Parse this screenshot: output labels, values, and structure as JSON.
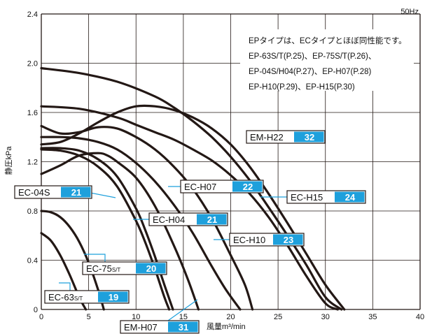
{
  "chart_data": {
    "type": "line",
    "frequency_label": "50Hz",
    "xlabel": "風量m³/min",
    "ylabel": "静圧kPa",
    "xlim": [
      0,
      40
    ],
    "ylim": [
      0,
      2.4
    ],
    "x_ticks": [
      "0",
      "5",
      "10",
      "15",
      "20",
      "25",
      "30",
      "35",
      "40"
    ],
    "y_ticks": [
      "0",
      "0.4",
      "0.8",
      "1.2",
      "1.6",
      "2.0",
      "2.4"
    ],
    "grid": true,
    "colors": {
      "curve": "#231815",
      "grid": "#231815",
      "label_box": "#1ea0dc",
      "leader": "#1ea0dc"
    },
    "note": {
      "lines": [
        "EPタイプは、ECタイプとほぼ同性能です。",
        "EP-63S/T(P.25)、EP-75S/T(P.26)、",
        "EP-04S/H04(P.27)、EP-H07(P.28)",
        "EP-H10(P.29)、EP-H15(P.30)"
      ]
    },
    "series": [
      {
        "name": "EC-63S/T",
        "base": "EC-63",
        "sub": "S/T",
        "page": "19",
        "x": [
          0,
          1,
          2,
          3,
          4,
          4.7
        ],
        "y": [
          0.62,
          0.56,
          0.44,
          0.28,
          0.1,
          0
        ]
      },
      {
        "name": "EC-75S/T",
        "base": "EC-75",
        "sub": "S/T",
        "page": "20",
        "x": [
          0,
          1,
          2,
          3,
          4,
          5,
          6,
          6.6
        ],
        "y": [
          0.8,
          0.79,
          0.75,
          0.67,
          0.55,
          0.38,
          0.16,
          0
        ]
      },
      {
        "name": "EC-04S",
        "page": "21",
        "x": [
          0,
          2,
          4,
          6,
          8,
          10,
          11,
          12,
          13,
          13.5
        ],
        "y": [
          1.3,
          1.29,
          1.25,
          1.16,
          1.0,
          0.72,
          0.54,
          0.33,
          0.1,
          0
        ]
      },
      {
        "name": "EC-H04",
        "page": "21",
        "x": [
          0,
          2,
          4,
          6,
          8,
          10,
          11,
          12,
          13,
          13.9
        ],
        "y": [
          1.31,
          1.31,
          1.29,
          1.22,
          1.08,
          0.82,
          0.64,
          0.43,
          0.2,
          0
        ]
      },
      {
        "name": "EM-H07",
        "page": "31",
        "x": [
          0,
          2,
          4,
          6,
          7,
          8,
          10,
          12,
          14,
          15.5,
          16.6
        ],
        "y": [
          1.1,
          1.17,
          1.25,
          1.27,
          1.25,
          1.2,
          1.07,
          0.84,
          0.52,
          0.24,
          0
        ]
      },
      {
        "name": "EC-H07",
        "page": "22",
        "x": [
          0,
          2,
          4,
          6,
          8,
          10,
          12,
          14,
          16,
          18,
          19.5,
          21
        ],
        "y": [
          1.4,
          1.4,
          1.39,
          1.36,
          1.3,
          1.19,
          1.04,
          0.85,
          0.62,
          0.35,
          0.16,
          0
        ]
      },
      {
        "name": "EC-H10",
        "page": "23",
        "x": [
          0,
          2,
          4,
          6,
          8,
          10,
          12,
          14,
          16,
          18,
          20,
          21.5,
          22.3
        ],
        "y": [
          1.49,
          1.43,
          1.44,
          1.48,
          1.47,
          1.4,
          1.3,
          1.16,
          0.98,
          0.74,
          0.44,
          0.2,
          0
        ]
      },
      {
        "name": "EC-H15",
        "page": "24",
        "x": [
          0,
          4,
          8,
          10,
          12,
          14,
          16,
          18,
          20,
          22,
          24,
          26,
          28,
          30,
          31.3
        ],
        "y": [
          1.65,
          1.63,
          1.56,
          1.5,
          1.44,
          1.38,
          1.3,
          1.21,
          1.09,
          0.94,
          0.75,
          0.52,
          0.27,
          0.05,
          0
        ]
      },
      {
        "name": "EM-H22",
        "page": "32",
        "x": [
          0,
          2,
          4,
          6,
          8,
          10,
          12,
          14,
          16,
          18,
          20,
          22,
          24,
          26,
          28,
          30,
          32
        ],
        "y": [
          1.34,
          1.36,
          1.43,
          1.52,
          1.6,
          1.65,
          1.65,
          1.62,
          1.56,
          1.47,
          1.34,
          1.16,
          0.94,
          0.7,
          0.45,
          0.2,
          0
        ]
      },
      {
        "name": "EM-H22 (upper)",
        "label": false,
        "x": [
          0,
          4,
          8,
          12,
          14,
          16,
          18,
          20,
          22,
          24,
          26,
          28,
          30,
          31.7
        ],
        "y": [
          1.96,
          1.92,
          1.85,
          1.73,
          1.64,
          1.53,
          1.4,
          1.24,
          1.05,
          0.83,
          0.6,
          0.36,
          0.1,
          0
        ]
      }
    ]
  }
}
